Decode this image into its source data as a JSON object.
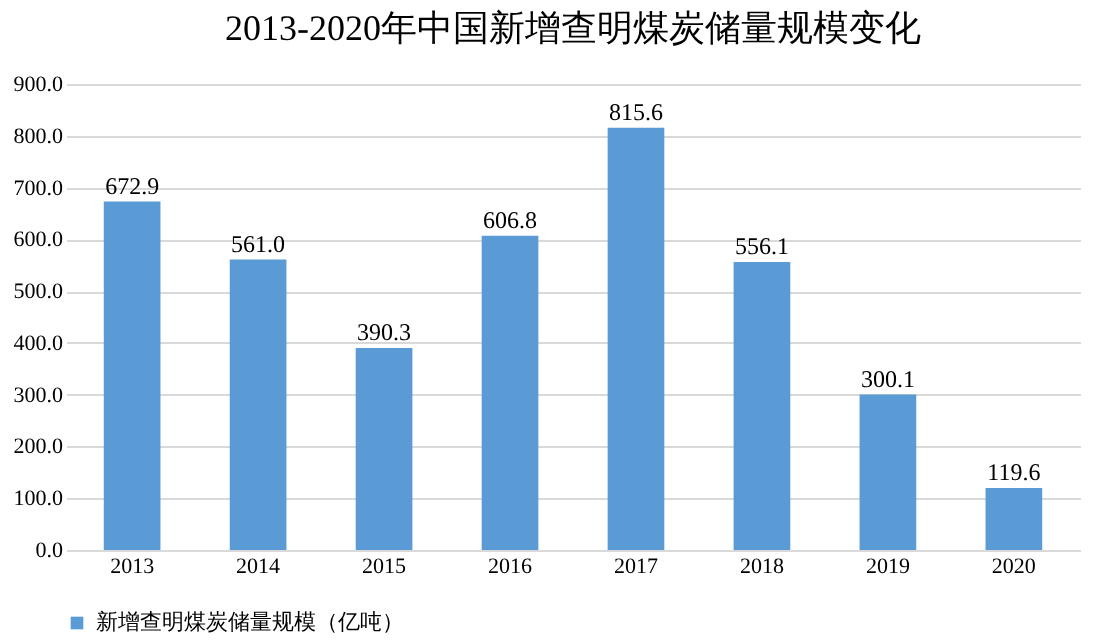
{
  "chart_data": {
    "type": "bar",
    "title": "2013-2020年中国新增查明煤炭储量规模变化",
    "categories": [
      "2013",
      "2014",
      "2015",
      "2016",
      "2017",
      "2018",
      "2019",
      "2020"
    ],
    "series": [
      {
        "name": "新增查明煤炭储量规模（亿吨）",
        "color": "#5b9bd5",
        "values": [
          672.9,
          561.0,
          390.3,
          606.8,
          815.6,
          556.1,
          300.1,
          119.6
        ],
        "value_labels": [
          "672.9",
          "561.0",
          "390.3",
          "606.8",
          "815.6",
          "556.1",
          "300.1",
          "119.6"
        ]
      }
    ],
    "ylim": [
      0,
      900
    ],
    "yticks": [
      {
        "value": 0,
        "label": "0.0"
      },
      {
        "value": 100,
        "label": "100.0"
      },
      {
        "value": 200,
        "label": "200.0"
      },
      {
        "value": 300,
        "label": "300.0"
      },
      {
        "value": 400,
        "label": "400.0"
      },
      {
        "value": 500,
        "label": "500.0"
      },
      {
        "value": 600,
        "label": "600.0"
      },
      {
        "value": 700,
        "label": "700.0"
      },
      {
        "value": 800,
        "label": "800.0"
      },
      {
        "value": 900,
        "label": "900.0"
      }
    ],
    "grid": "y",
    "legend": "bottom"
  }
}
